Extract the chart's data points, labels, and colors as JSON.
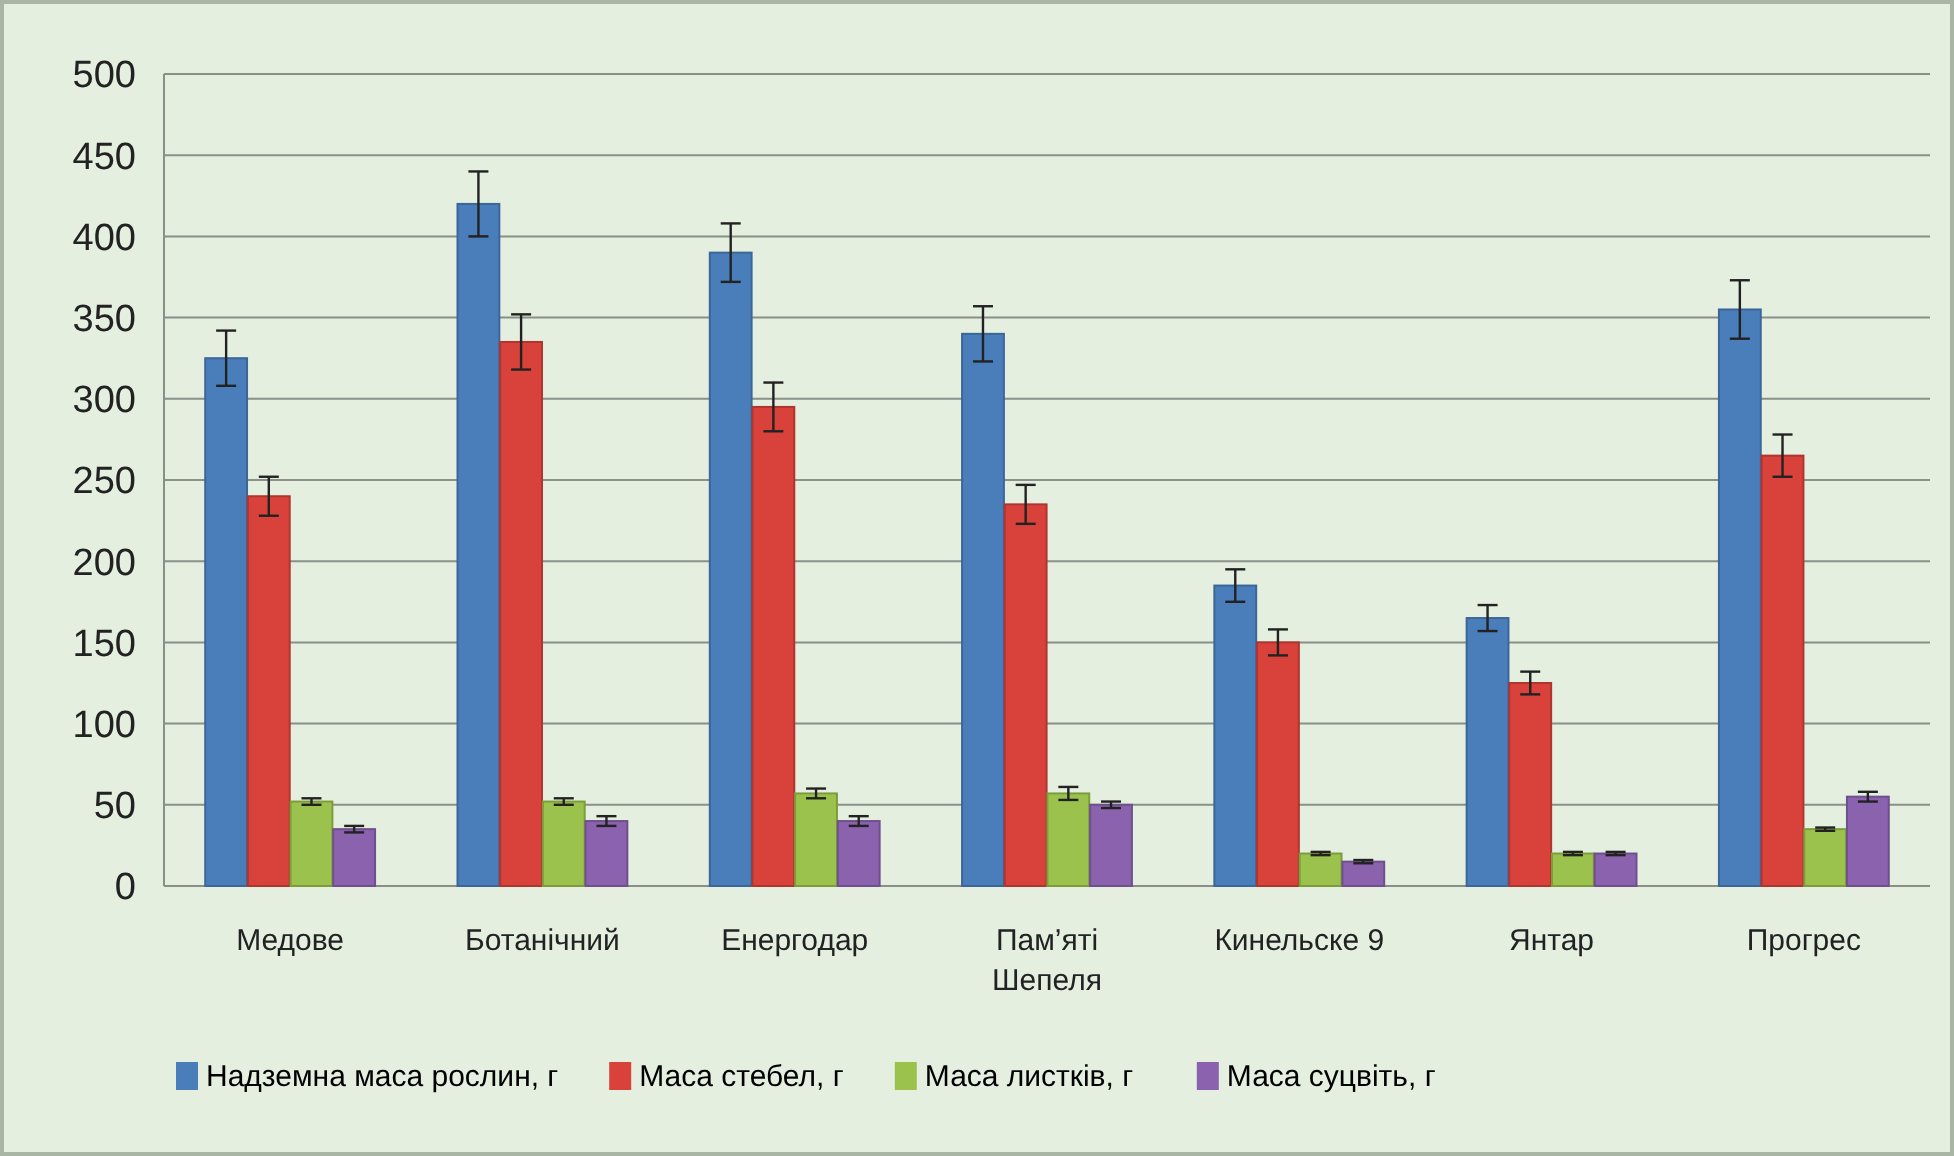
{
  "chart_data": {
    "type": "bar",
    "categories": [
      "Медове",
      "Ботанічний",
      "Енергодар",
      "Пам’яті Шепеля",
      "Кинельске 9",
      "Янтар",
      "Прогрес"
    ],
    "series": [
      {
        "name": "Надземна маса рослин, г",
        "color": "#4a7ebb",
        "values": [
          325,
          420,
          390,
          340,
          185,
          165,
          355
        ],
        "errors": [
          17,
          20,
          18,
          17,
          10,
          8,
          18
        ]
      },
      {
        "name": "Маса стебел, г",
        "color": "#d9423a",
        "values": [
          240,
          335,
          295,
          235,
          150,
          125,
          265
        ],
        "errors": [
          12,
          17,
          15,
          12,
          8,
          7,
          13
        ]
      },
      {
        "name": "Маса листків, г",
        "color": "#9bc24c",
        "values": [
          52,
          52,
          57,
          57,
          20,
          20,
          35
        ],
        "errors": [
          2,
          2,
          3,
          4,
          1,
          1,
          1
        ]
      },
      {
        "name": "Маса суцвіть, г",
        "color": "#8a62ad",
        "values": [
          35,
          40,
          40,
          50,
          15,
          20,
          55
        ],
        "errors": [
          2,
          3,
          3,
          2,
          1,
          1,
          3
        ]
      }
    ],
    "ylim": [
      0,
      500
    ],
    "yticks": [
      0,
      50,
      100,
      150,
      200,
      250,
      300,
      350,
      400,
      450,
      500
    ],
    "grid": "y",
    "legend": "bottom"
  }
}
